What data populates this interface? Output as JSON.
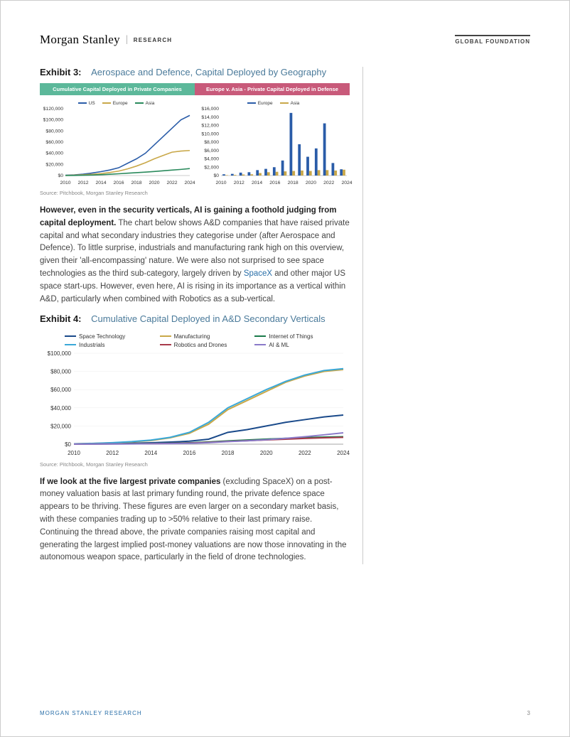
{
  "header": {
    "brand": "Morgan Stanley",
    "sub": "RESEARCH",
    "right": "GLOBAL FOUNDATION"
  },
  "exhibit3": {
    "label": "Exhibit 3:",
    "title": "Aerospace and Defence, Capital Deployed by Geography",
    "banner_left": "Cumulative Capital Deployed in Private Companies",
    "banner_right": "Europe v. Asia - Private Capital Deployed in Defense",
    "banner_left_color": "#5cb89a",
    "banner_right_color": "#c85a7a",
    "source": "Source: Pitchbook, Morgan Stanley Research",
    "left_chart": {
      "type": "line",
      "yticks": [
        "$0",
        "$20,000",
        "$40,000",
        "$60,000",
        "$80,000",
        "$100,000",
        "$120,000"
      ],
      "ymax": 120000,
      "xticks": [
        "2010",
        "2012",
        "2014",
        "2016",
        "2018",
        "2020",
        "2022",
        "2024"
      ],
      "legend": [
        {
          "label": "US",
          "color": "#2a5ca8"
        },
        {
          "label": "Europe",
          "color": "#c9a849"
        },
        {
          "label": "Asia",
          "color": "#2a8a5c"
        }
      ],
      "series": {
        "US": [
          500,
          1200,
          2500,
          4500,
          7000,
          10000,
          14000,
          22000,
          30000,
          40000,
          55000,
          70000,
          85000,
          100000,
          108000
        ],
        "Europe": [
          300,
          700,
          1400,
          2200,
          3500,
          5500,
          8000,
          12000,
          17000,
          23000,
          30000,
          36000,
          42000,
          44000,
          45000
        ],
        "Asia": [
          100,
          250,
          500,
          900,
          1500,
          2300,
          3200,
          4200,
          5200,
          6200,
          7300,
          8500,
          9800,
          11000,
          12500
        ]
      }
    },
    "right_chart": {
      "type": "bar",
      "yticks": [
        "$0",
        "$2,000",
        "$4,000",
        "$6,000",
        "$8,000",
        "$10,000",
        "$12,000",
        "$14,000",
        "$16,000"
      ],
      "ymax": 16000,
      "xticks": [
        "2010",
        "2012",
        "2014",
        "2016",
        "2018",
        "2020",
        "2022",
        "2024"
      ],
      "legend": [
        {
          "label": "Europe",
          "color": "#2a5ca8"
        },
        {
          "label": "Asia",
          "color": "#c9a849"
        }
      ],
      "series": {
        "Europe": [
          300,
          400,
          700,
          800,
          1300,
          1600,
          2000,
          3600,
          15000,
          7500,
          4500,
          6500,
          12500,
          3000,
          1500
        ],
        "Asia": [
          100,
          150,
          250,
          300,
          600,
          800,
          900,
          1000,
          1100,
          1200,
          1100,
          1300,
          1300,
          1200,
          1400
        ]
      }
    }
  },
  "para1_bold": "However, even in the security verticals, AI is gaining a foothold judging from capital deployment.",
  "para1_rest": " The chart below shows A&D companies that have raised private capital and what secondary industries they categorise under (after Aerospace and Defence). To little surprise, industrials and manufacturing rank high on this overview, given their 'all-encompassing' nature. We were also not surprised to see space technologies as the third sub-category, largely driven by ",
  "para1_link": "SpaceX",
  "para1_rest2": " and other major US space start-ups. However, even here, AI is rising in its importance as a vertical within A&D, particularly when combined with Robotics as a sub-vertical.",
  "exhibit4": {
    "label": "Exhibit 4:",
    "title": "Cumulative Capital Deployed in A&D Secondary Verticals",
    "source": "Source: Pitchbook, Morgan Stanley Research",
    "type": "line",
    "yticks": [
      "$0",
      "$20,000",
      "$40,000",
      "$60,000",
      "$80,000",
      "$100,000"
    ],
    "ymax": 100000,
    "xticks": [
      "2010",
      "2012",
      "2014",
      "2016",
      "2018",
      "2020",
      "2022",
      "2024"
    ],
    "legend": [
      {
        "label": "Space Technology",
        "color": "#1a4a8a"
      },
      {
        "label": "Manufacturing",
        "color": "#c9a849"
      },
      {
        "label": "Internet of Things",
        "color": "#1a7a4a"
      },
      {
        "label": "Industrials",
        "color": "#3aa8d8"
      },
      {
        "label": "Robotics and Drones",
        "color": "#a83a4a"
      },
      {
        "label": "AI & ML",
        "color": "#8a7ac9"
      }
    ],
    "series": {
      "Space Technology": [
        200,
        400,
        700,
        1100,
        1600,
        2300,
        3300,
        5500,
        13000,
        16000,
        20000,
        24000,
        27000,
        30000,
        32000
      ],
      "Manufacturing": [
        400,
        800,
        1500,
        2500,
        4000,
        7000,
        12000,
        22000,
        38000,
        48000,
        58000,
        68000,
        75000,
        80000,
        82000
      ],
      "Internet of Things": [
        100,
        200,
        350,
        550,
        800,
        1100,
        1600,
        2400,
        3600,
        4600,
        5600,
        6400,
        7200,
        7800,
        8200
      ],
      "Industrials": [
        400,
        900,
        1700,
        2800,
        4500,
        7500,
        13000,
        24000,
        40000,
        50000,
        60000,
        69000,
        76000,
        81000,
        83000
      ],
      "Robotics and Drones": [
        80,
        160,
        280,
        420,
        620,
        880,
        1300,
        2000,
        3000,
        3800,
        4700,
        5500,
        6300,
        7000,
        7500
      ],
      "AI & ML": [
        50,
        100,
        180,
        290,
        440,
        650,
        1000,
        1700,
        2800,
        3700,
        4900,
        6400,
        8200,
        10300,
        12500
      ]
    }
  },
  "para2_bold": "If we look at the five largest private companies",
  "para2_rest": " (excluding SpaceX) on a post-money valuation basis at last primary funding round, the private defence space appears to be thriving. These figures are even larger on a secondary market basis, with these companies trading up to >50% relative to their last primary raise. Continuing the thread above, the private companies raising most capital and generating the largest implied post-money valuations are now those innovating in the autonomous weapon space, particularly in the field of drone technologies.",
  "footer": {
    "left": "MORGAN STANLEY RESEARCH",
    "page": "3"
  }
}
